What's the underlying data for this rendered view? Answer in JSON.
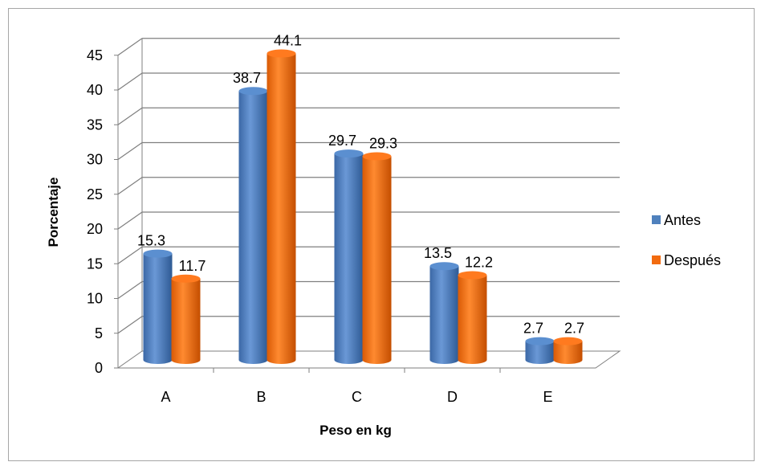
{
  "chart_data": {
    "type": "bar",
    "title": "",
    "xlabel": "Peso en kg",
    "ylabel": "Porcentaje",
    "categories": [
      "A",
      "B",
      "C",
      "D",
      "E"
    ],
    "ylim": [
      0,
      45
    ],
    "yticks": [
      0,
      5,
      10,
      15,
      20,
      25,
      30,
      35,
      40,
      45
    ],
    "grid": true,
    "legend_position": "right",
    "style": "3d-cylinder",
    "series": [
      {
        "name": "Antes",
        "color": "#4f81bd",
        "values": [
          15.3,
          38.7,
          29.7,
          13.5,
          2.7
        ],
        "labels": [
          "15.3",
          "38.7",
          "29.7",
          "13.5",
          "2.7"
        ]
      },
      {
        "name": "Después",
        "color": "#f26b0f",
        "values": [
          11.7,
          44.1,
          29.3,
          12.2,
          2.7
        ],
        "labels": [
          "11.7",
          "44.1",
          "29.3",
          "12.2",
          "2.7"
        ]
      }
    ]
  }
}
